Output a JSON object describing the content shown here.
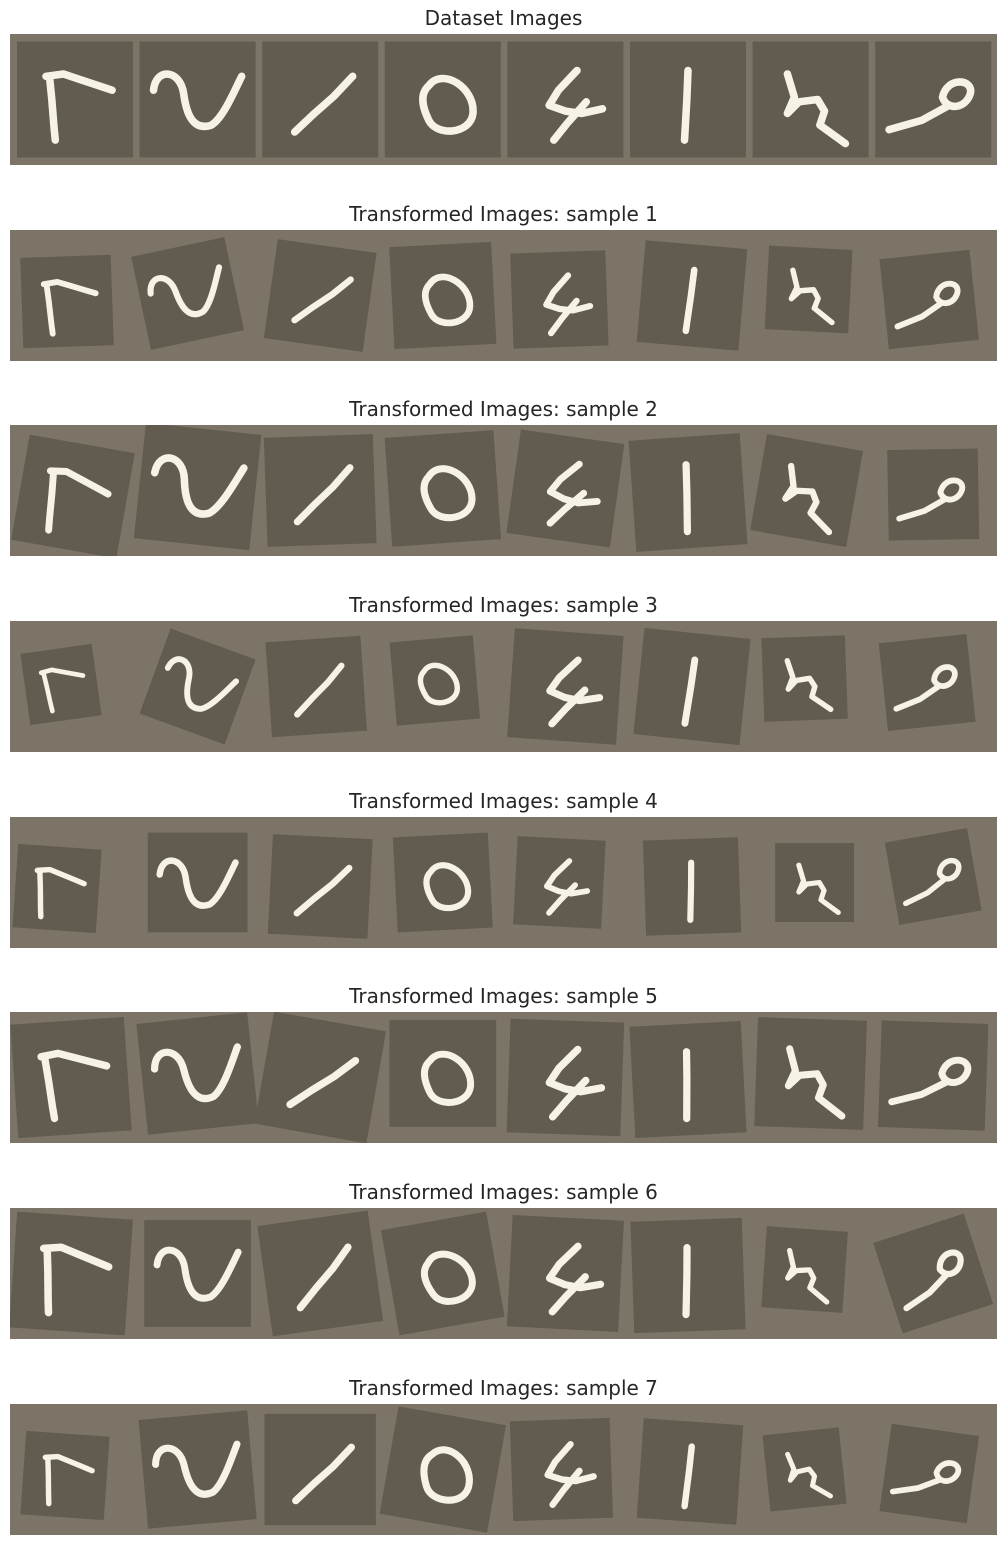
{
  "sections": [
    {
      "title": "Dataset Images",
      "transform": "none"
    },
    {
      "title": "Transformed Images: sample 1",
      "transform": "t1"
    },
    {
      "title": "Transformed Images: sample 2",
      "transform": "t2"
    },
    {
      "title": "Transformed Images: sample 3",
      "transform": "t3"
    },
    {
      "title": "Transformed Images: sample 4",
      "transform": "t4"
    },
    {
      "title": "Transformed Images: sample 5",
      "transform": "t5"
    },
    {
      "title": "Transformed Images: sample 6",
      "transform": "t6"
    },
    {
      "title": "Transformed Images: sample 7",
      "transform": "t7"
    }
  ],
  "digits": [
    "7",
    "2",
    "1",
    "0",
    "4",
    "1",
    "4",
    "9"
  ],
  "colors": {
    "strip_background": "#7b7467",
    "tile_background": "#625b4f",
    "stroke": "#f6f2e6",
    "title_text": "#262626"
  }
}
